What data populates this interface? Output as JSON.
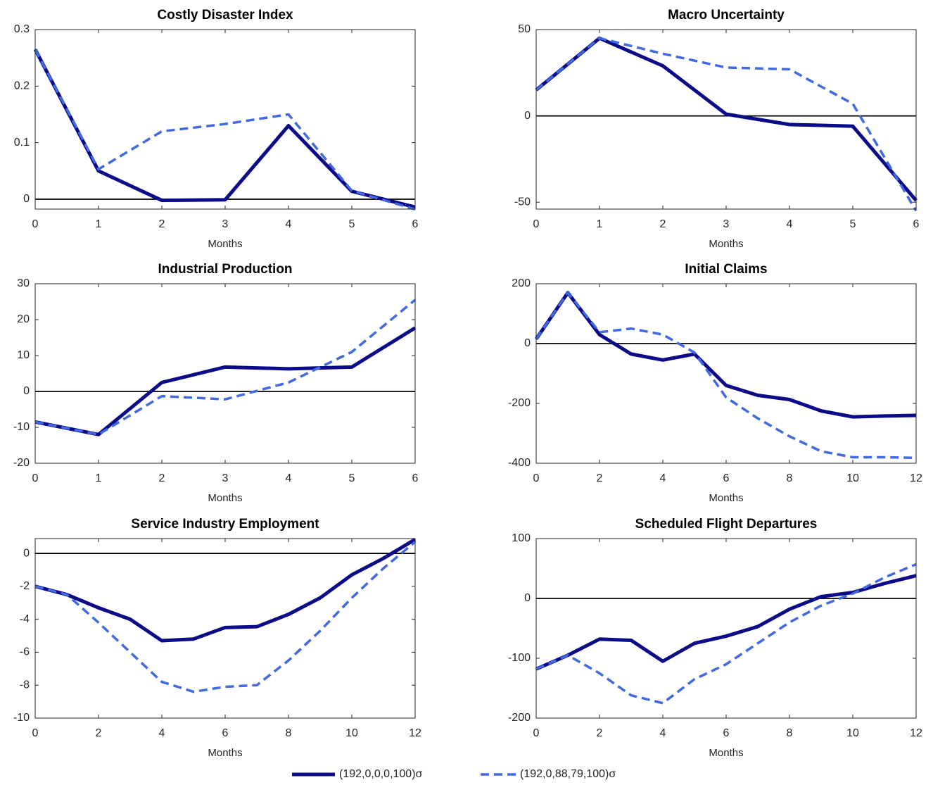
{
  "chart_data": [
    {
      "type": "line",
      "title": "Costly Disaster Index",
      "xlabel": "Months",
      "x": [
        0,
        1,
        2,
        3,
        4,
        5,
        6
      ],
      "xlim": [
        0,
        6
      ],
      "xticks": [
        0,
        1,
        2,
        3,
        4,
        5,
        6
      ],
      "ylim": [
        -0.0175,
        0.3
      ],
      "yticks": [
        0,
        0.1,
        0.2,
        0.3
      ],
      "zero_line": true,
      "legend": "bottom",
      "series": [
        {
          "name": "(192,0,0,0,100)σ",
          "color": "#0b0b8a",
          "style": "solid",
          "values": [
            0.265,
            0.05,
            -0.002,
            -0.001,
            0.13,
            0.014,
            -0.014
          ]
        },
        {
          "name": "(192,0,88,79,100)σ",
          "color": "#4169e1",
          "style": "dashed",
          "values": [
            0.265,
            0.053,
            0.12,
            0.133,
            0.15,
            0.015,
            -0.018
          ]
        }
      ]
    },
    {
      "type": "line",
      "title": "Macro Uncertainty",
      "xlabel": "Months",
      "x": [
        0,
        1,
        2,
        3,
        4,
        5,
        6
      ],
      "xlim": [
        0,
        6
      ],
      "xticks": [
        0,
        1,
        2,
        3,
        4,
        5,
        6
      ],
      "ylim": [
        -54,
        50
      ],
      "yticks": [
        -50,
        0,
        50
      ],
      "zero_line": true,
      "series": [
        {
          "color": "#0b0b8a",
          "style": "solid",
          "values": [
            15,
            45,
            29,
            1,
            -5,
            -6,
            -49
          ]
        },
        {
          "color": "#4169e1",
          "style": "dashed",
          "values": [
            15,
            45,
            36,
            28,
            27,
            7,
            -55
          ]
        }
      ]
    },
    {
      "type": "line",
      "title": "Industrial Production",
      "xlabel": "Months",
      "x": [
        0,
        1,
        2,
        3,
        4,
        5,
        6
      ],
      "xlim": [
        0,
        6
      ],
      "xticks": [
        0,
        1,
        2,
        3,
        4,
        5,
        6
      ],
      "ylim": [
        -20,
        30
      ],
      "yticks": [
        -20,
        -10,
        0,
        10,
        20,
        30
      ],
      "zero_line": true,
      "series": [
        {
          "color": "#0b0b8a",
          "style": "solid",
          "values": [
            -8.5,
            -12,
            2.5,
            6.8,
            6.3,
            6.8,
            17.7
          ]
        },
        {
          "color": "#4169e1",
          "style": "dashed",
          "values": [
            -8.5,
            -12,
            -1.3,
            -2.2,
            2.5,
            11,
            25.5
          ]
        }
      ]
    },
    {
      "type": "line",
      "title": "Initial Claims",
      "xlabel": "Months",
      "x": [
        0,
        1,
        2,
        3,
        4,
        5,
        6,
        7,
        8,
        9,
        10,
        11,
        12
      ],
      "xlim": [
        0,
        12
      ],
      "xticks": [
        0,
        2,
        4,
        6,
        8,
        10,
        12
      ],
      "ylim": [
        -400,
        200
      ],
      "yticks": [
        -400,
        -200,
        0,
        200
      ],
      "zero_line": true,
      "series": [
        {
          "color": "#0b0b8a",
          "style": "solid",
          "values": [
            15,
            170,
            30,
            -35,
            -55,
            -35,
            -140,
            -173,
            -187,
            -225,
            -245,
            -242,
            -240
          ]
        },
        {
          "color": "#4169e1",
          "style": "dashed",
          "values": [
            15,
            170,
            38,
            50,
            30,
            -30,
            -180,
            -250,
            -310,
            -360,
            -380,
            -380,
            -382
          ]
        }
      ]
    },
    {
      "type": "line",
      "title": "Service Industry Employment",
      "xlabel": "Months",
      "x": [
        0,
        1,
        2,
        3,
        4,
        5,
        6,
        7,
        8,
        9,
        10,
        11,
        12
      ],
      "xlim": [
        0,
        12
      ],
      "xticks": [
        0,
        2,
        4,
        6,
        8,
        10,
        12
      ],
      "ylim": [
        -10,
        0.9
      ],
      "yticks": [
        -10,
        -8,
        -6,
        -4,
        -2,
        0
      ],
      "zero_line": true,
      "series": [
        {
          "color": "#0b0b8a",
          "style": "solid",
          "values": [
            -2,
            -2.5,
            -3.3,
            -4,
            -5.3,
            -5.2,
            -4.5,
            -4.45,
            -3.7,
            -2.7,
            -1.3,
            -0.3,
            0.85
          ]
        },
        {
          "color": "#4169e1",
          "style": "dashed",
          "values": [
            -2,
            -2.5,
            -4.2,
            -6,
            -7.8,
            -8.4,
            -8.1,
            -8,
            -6.5,
            -4.7,
            -2.7,
            -0.9,
            0.7
          ]
        }
      ]
    },
    {
      "type": "line",
      "title": "Scheduled Flight Departures",
      "xlabel": "Months",
      "x": [
        0,
        1,
        2,
        3,
        4,
        5,
        6,
        7,
        8,
        9,
        10,
        11,
        12
      ],
      "xlim": [
        0,
        12
      ],
      "xticks": [
        0,
        2,
        4,
        6,
        8,
        10,
        12
      ],
      "ylim": [
        -200,
        100
      ],
      "yticks": [
        -200,
        -100,
        0,
        100
      ],
      "zero_line": true,
      "series": [
        {
          "color": "#0b0b8a",
          "style": "solid",
          "values": [
            -118,
            -95,
            -68,
            -70,
            -105,
            -75,
            -63,
            -47,
            -18,
            3,
            10,
            25,
            38
          ]
        },
        {
          "color": "#4169e1",
          "style": "dashed",
          "values": [
            -118,
            -95,
            -125,
            -162,
            -175,
            -135,
            -110,
            -75,
            -40,
            -12,
            8,
            35,
            57
          ]
        }
      ]
    }
  ]
}
